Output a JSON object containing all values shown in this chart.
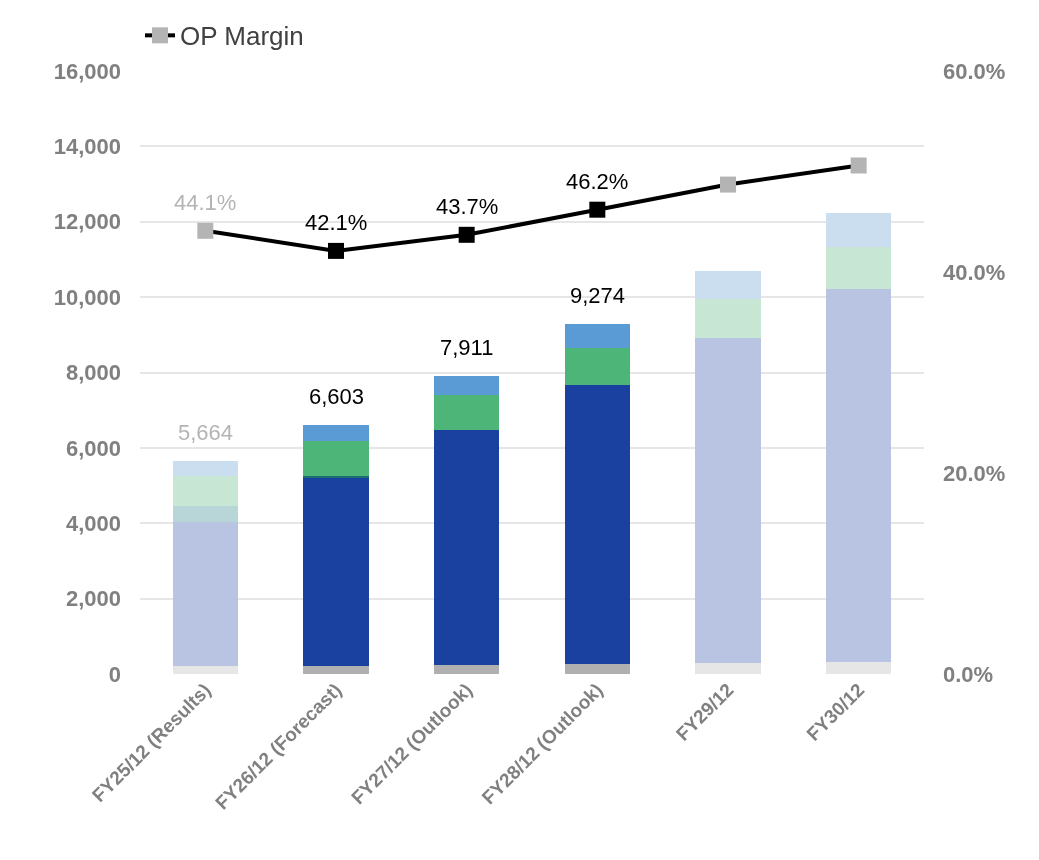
{
  "chart_data": {
    "type": "bar",
    "stacked": true,
    "categories": [
      "FY25/12 (Results)",
      "FY26/12 (Forecast)",
      "FY27/12 (Outlook)",
      "FY28/12 (Outlook)",
      "FY29/12",
      "FY30/12"
    ],
    "series": [
      {
        "colors": [
          "#e6e6e6",
          "#b0b0b0",
          "#b0b0b0",
          "#b0b0b0",
          "#e6e6e6",
          "#e6e6e6"
        ],
        "values": [
          210,
          220,
          250,
          270,
          300,
          320
        ]
      },
      {
        "colors": [
          "#b9c4e2",
          "#1b41a0",
          "#1b41a0",
          "#1b41a0",
          "#b9c4e2",
          "#b9c4e2"
        ],
        "values": [
          3830,
          4976,
          6216,
          7405,
          8610,
          9900
        ]
      },
      {
        "colors": [
          "#b8d6d8",
          "#1a6e6e",
          "#1a6e6e",
          "#1a6e6e",
          "#b8d6d8",
          "#b8d6d8"
        ],
        "values": [
          430,
          70,
          null,
          null,
          null,
          null
        ]
      },
      {
        "colors": [
          "#c8e6d4",
          "#4cb577",
          "#4cb577",
          "#4cb577",
          "#c8e6d4",
          "#c8e6d4"
        ],
        "values": [
          790,
          913,
          928,
          971,
          1050,
          1120
        ]
      },
      {
        "colors": [
          "#cadeef",
          "#5b9bd5",
          "#5b9bd5",
          "#5b9bd5",
          "#cadeef",
          "#cadeef"
        ],
        "values": [
          404,
          424,
          517,
          628,
          740,
          900
        ]
      },
      {
        "name": "OP Margin",
        "type": "line",
        "axis": "y2",
        "color": "#000000",
        "colors": [
          "#b4b4b4",
          "#000000",
          "#000000",
          "#000000",
          "#b4b4b4",
          "#b4b4b4"
        ],
        "values": [
          44.1,
          42.1,
          43.7,
          46.2,
          48.7,
          50.6
        ],
        "value_labels": [
          "44.1%",
          "42.1%",
          "43.7%",
          "46.2%",
          null,
          null
        ]
      }
    ],
    "totals": [
      "5,664",
      "6,603",
      "7,911",
      "9,274",
      null,
      null
    ],
    "ylim": [
      0,
      16000
    ],
    "yticks": [
      0,
      {
        "value": 2000,
        "label": "2,000"
      },
      {
        "value": 4000,
        "label": "4,000"
      },
      {
        "value": 6000,
        "label": "6,000"
      },
      {
        "value": 8000,
        "label": "8,000"
      },
      {
        "value": 10000,
        "label": "10,000"
      },
      {
        "value": 12000,
        "label": "12,000"
      },
      {
        "value": 14000,
        "label": "14,000"
      },
      {
        "value": 16000,
        "label": "16,000"
      }
    ],
    "y2lim": [
      0,
      60
    ],
    "y2ticks": [
      {
        "value": 0,
        "label": "0.0%"
      },
      {
        "value": 20,
        "label": "20.0%"
      },
      {
        "value": 40,
        "label": "40.0%"
      },
      {
        "value": 60,
        "label": "60.0%"
      }
    ],
    "grid": "y",
    "legend": "top left",
    "marker": "square",
    "line_style": "solid"
  }
}
